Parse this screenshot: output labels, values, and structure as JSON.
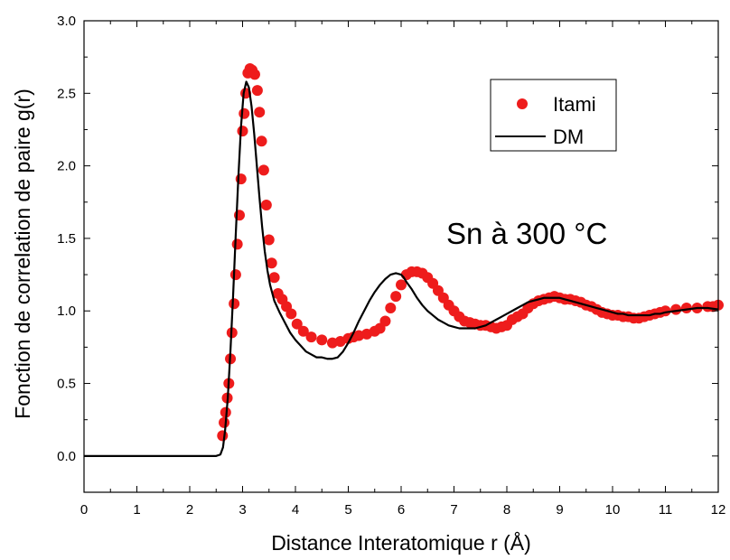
{
  "chart_data": {
    "type": "scatter",
    "xlabel": "Distance Interatomique r (Å)",
    "ylabel": "Fonction de correlation de paire g(r)",
    "xlim": [
      0,
      12
    ],
    "ylim": [
      -0.25,
      3.0
    ],
    "xticks": [
      0,
      1,
      2,
      3,
      4,
      5,
      6,
      7,
      8,
      9,
      10,
      11,
      12
    ],
    "yticks": [
      0.0,
      0.5,
      1.0,
      1.5,
      2.0,
      2.5,
      3.0
    ],
    "xtick_labels": [
      "0",
      "1",
      "2",
      "3",
      "4",
      "5",
      "6",
      "7",
      "8",
      "9",
      "10",
      "11",
      "12"
    ],
    "ytick_labels": [
      "0.0",
      "0.5",
      "1.0",
      "1.5",
      "2.0",
      "2.5",
      "3.0"
    ],
    "grid": false,
    "legend_position": "top-right",
    "annotation": "Sn à 300 °C",
    "series": [
      {
        "name": "Itami",
        "style": "markers",
        "color": "#ee1c1c",
        "x": [
          2.62,
          2.65,
          2.68,
          2.71,
          2.74,
          2.77,
          2.8,
          2.84,
          2.87,
          2.9,
          2.94,
          2.97,
          3.0,
          3.03,
          3.06,
          3.1,
          3.14,
          3.18,
          3.23,
          3.28,
          3.32,
          3.36,
          3.4,
          3.45,
          3.5,
          3.55,
          3.6,
          3.67,
          3.75,
          3.83,
          3.92,
          4.03,
          4.15,
          4.3,
          4.5,
          4.7,
          4.85,
          5.0,
          5.1,
          5.2,
          5.35,
          5.5,
          5.6,
          5.7,
          5.8,
          5.9,
          6.0,
          6.1,
          6.2,
          6.3,
          6.4,
          6.5,
          6.6,
          6.7,
          6.8,
          6.9,
          7.0,
          7.1,
          7.2,
          7.3,
          7.4,
          7.5,
          7.6,
          7.7,
          7.8,
          7.9,
          8.0,
          8.1,
          8.2,
          8.3,
          8.4,
          8.5,
          8.6,
          8.7,
          8.8,
          8.9,
          9.0,
          9.1,
          9.2,
          9.3,
          9.4,
          9.5,
          9.6,
          9.7,
          9.8,
          9.9,
          10.0,
          10.1,
          10.2,
          10.3,
          10.4,
          10.5,
          10.6,
          10.7,
          10.8,
          10.9,
          11.0,
          11.2,
          11.4,
          11.6,
          11.8,
          11.9,
          12.0
        ],
        "y": [
          0.14,
          0.23,
          0.3,
          0.4,
          0.5,
          0.67,
          0.85,
          1.05,
          1.25,
          1.46,
          1.66,
          1.91,
          2.24,
          2.36,
          2.5,
          2.64,
          2.67,
          2.66,
          2.63,
          2.52,
          2.37,
          2.17,
          1.97,
          1.73,
          1.49,
          1.33,
          1.23,
          1.12,
          1.08,
          1.03,
          0.98,
          0.91,
          0.86,
          0.82,
          0.8,
          0.78,
          0.79,
          0.81,
          0.82,
          0.83,
          0.84,
          0.86,
          0.88,
          0.93,
          1.02,
          1.1,
          1.18,
          1.25,
          1.27,
          1.27,
          1.26,
          1.23,
          1.19,
          1.14,
          1.09,
          1.04,
          1.0,
          0.96,
          0.93,
          0.92,
          0.91,
          0.9,
          0.9,
          0.89,
          0.88,
          0.89,
          0.9,
          0.94,
          0.96,
          0.98,
          1.02,
          1.05,
          1.07,
          1.08,
          1.09,
          1.1,
          1.09,
          1.08,
          1.08,
          1.07,
          1.06,
          1.04,
          1.03,
          1.01,
          0.99,
          0.98,
          0.97,
          0.97,
          0.96,
          0.96,
          0.95,
          0.95,
          0.96,
          0.97,
          0.98,
          0.99,
          1.0,
          1.01,
          1.02,
          1.02,
          1.03,
          1.03,
          1.04
        ]
      },
      {
        "name": "DM",
        "style": "line",
        "color": "#000000",
        "x": [
          0.0,
          2.0,
          2.5,
          2.58,
          2.63,
          2.67,
          2.72,
          2.77,
          2.82,
          2.87,
          2.92,
          2.97,
          3.02,
          3.07,
          3.12,
          3.17,
          3.22,
          3.27,
          3.32,
          3.37,
          3.42,
          3.47,
          3.52,
          3.6,
          3.7,
          3.8,
          3.9,
          4.0,
          4.1,
          4.2,
          4.3,
          4.4,
          4.5,
          4.6,
          4.7,
          4.8,
          4.9,
          5.0,
          5.1,
          5.2,
          5.3,
          5.4,
          5.5,
          5.6,
          5.7,
          5.8,
          5.9,
          6.0,
          6.05,
          6.1,
          6.2,
          6.3,
          6.4,
          6.5,
          6.6,
          6.7,
          6.8,
          6.9,
          7.0,
          7.1,
          7.2,
          7.3,
          7.4,
          7.5,
          7.6,
          7.7,
          7.8,
          7.9,
          8.0,
          8.1,
          8.2,
          8.3,
          8.4,
          8.5,
          8.6,
          8.7,
          8.8,
          8.9,
          9.0,
          9.1,
          9.2,
          9.3,
          9.4,
          9.5,
          9.6,
          9.7,
          9.8,
          9.9,
          10.0,
          10.1,
          10.2,
          10.3,
          10.4,
          10.5,
          10.6,
          10.7,
          10.8,
          10.9,
          11.0,
          11.2,
          11.4,
          11.6,
          11.8,
          12.0
        ],
        "y": [
          0.0,
          0.0,
          0.0,
          0.01,
          0.06,
          0.18,
          0.4,
          0.72,
          1.1,
          1.52,
          1.92,
          2.27,
          2.5,
          2.58,
          2.54,
          2.41,
          2.22,
          2.0,
          1.78,
          1.58,
          1.41,
          1.28,
          1.18,
          1.07,
          0.99,
          0.92,
          0.85,
          0.8,
          0.76,
          0.72,
          0.7,
          0.68,
          0.68,
          0.67,
          0.67,
          0.68,
          0.72,
          0.78,
          0.85,
          0.93,
          1.0,
          1.07,
          1.13,
          1.18,
          1.22,
          1.25,
          1.26,
          1.25,
          1.23,
          1.2,
          1.15,
          1.09,
          1.04,
          1.0,
          0.97,
          0.94,
          0.92,
          0.9,
          0.89,
          0.88,
          0.88,
          0.88,
          0.88,
          0.89,
          0.9,
          0.92,
          0.94,
          0.96,
          0.98,
          1.0,
          1.02,
          1.04,
          1.06,
          1.07,
          1.08,
          1.09,
          1.09,
          1.09,
          1.09,
          1.08,
          1.07,
          1.06,
          1.05,
          1.04,
          1.03,
          1.02,
          1.01,
          1.0,
          0.99,
          0.98,
          0.98,
          0.97,
          0.97,
          0.97,
          0.97,
          0.97,
          0.98,
          0.98,
          0.99,
          1.0,
          1.01,
          1.02,
          1.02,
          1.01
        ]
      }
    ]
  }
}
